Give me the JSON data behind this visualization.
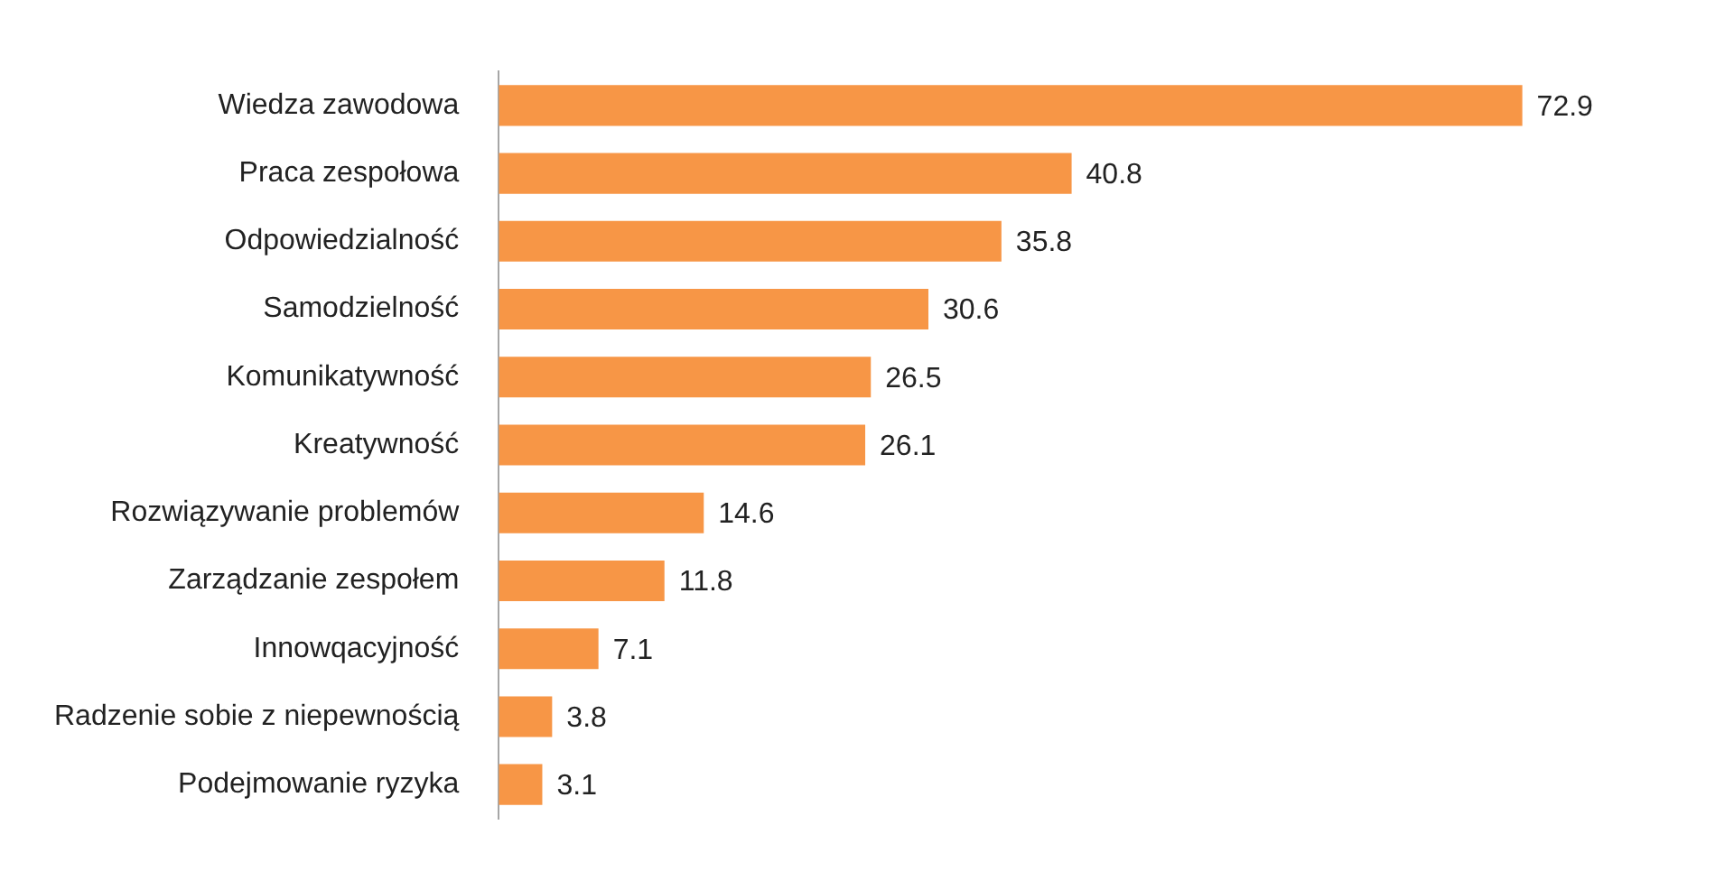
{
  "chart_data": {
    "type": "bar",
    "orientation": "horizontal",
    "categories": [
      "Wiedza zawodowa",
      "Praca zespołowa",
      "Odpowiedzialność",
      "Samodzielność",
      "Komunikatywność",
      "Kreatywność",
      "Rozwiązywanie problemów",
      "Zarządzanie zespołem",
      "Innowqacyjność",
      "Radzenie sobie z niepewnością",
      "Podejmowanie ryzyka"
    ],
    "values": [
      72.9,
      40.8,
      35.8,
      30.6,
      26.5,
      26.1,
      14.6,
      11.8,
      7.1,
      3.8,
      3.1
    ],
    "color": "#f79646",
    "data_labels": true,
    "grid": false,
    "legend": false
  }
}
